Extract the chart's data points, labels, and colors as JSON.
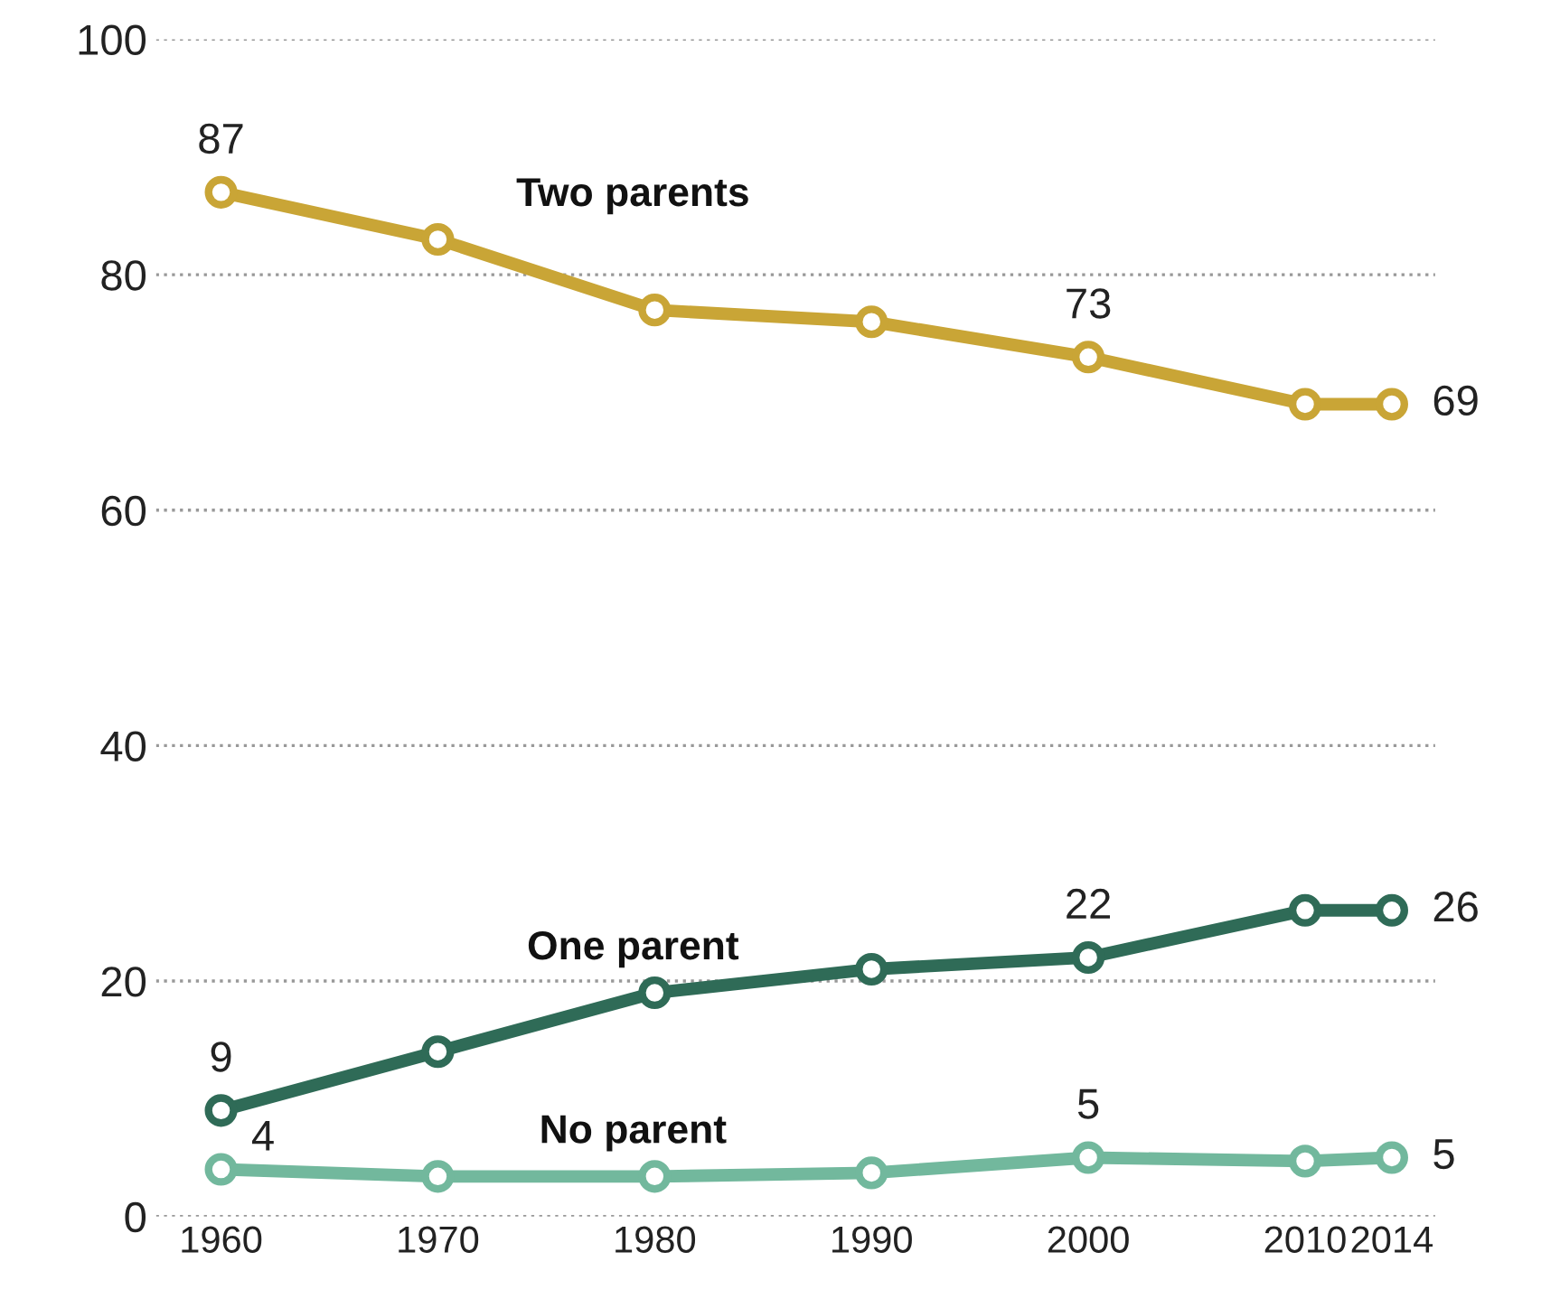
{
  "chart_data": {
    "type": "line",
    "x": [
      1960,
      1970,
      1980,
      1990,
      2000,
      2010,
      2014
    ],
    "series": [
      {
        "name": "Two parents",
        "color": "#c9a536",
        "values": [
          87,
          83,
          77,
          76,
          73,
          69,
          69
        ],
        "value_labels": [
          "87",
          null,
          null,
          null,
          "73",
          null,
          "69"
        ]
      },
      {
        "name": "One parent",
        "color": "#2f6b57",
        "values": [
          9,
          14,
          19,
          21,
          22,
          26,
          26
        ],
        "value_labels": [
          "9",
          null,
          null,
          null,
          "22",
          null,
          "26"
        ]
      },
      {
        "name": "No parent",
        "color": "#72b89d",
        "values": [
          4,
          3.4,
          3.4,
          3.7,
          5,
          4.7,
          5
        ],
        "value_labels": [
          "4",
          null,
          null,
          null,
          "5",
          null,
          "5"
        ]
      }
    ],
    "xlim": [
      1957,
      2016
    ],
    "xticks": [
      1960,
      1970,
      1980,
      1990,
      2000,
      2010,
      2014
    ],
    "ylim": [
      0,
      100
    ],
    "yticks": [
      0,
      20,
      40,
      60,
      80,
      100
    ],
    "grid": "y",
    "marker": "circle",
    "line_style": "solid",
    "legend": false
  }
}
